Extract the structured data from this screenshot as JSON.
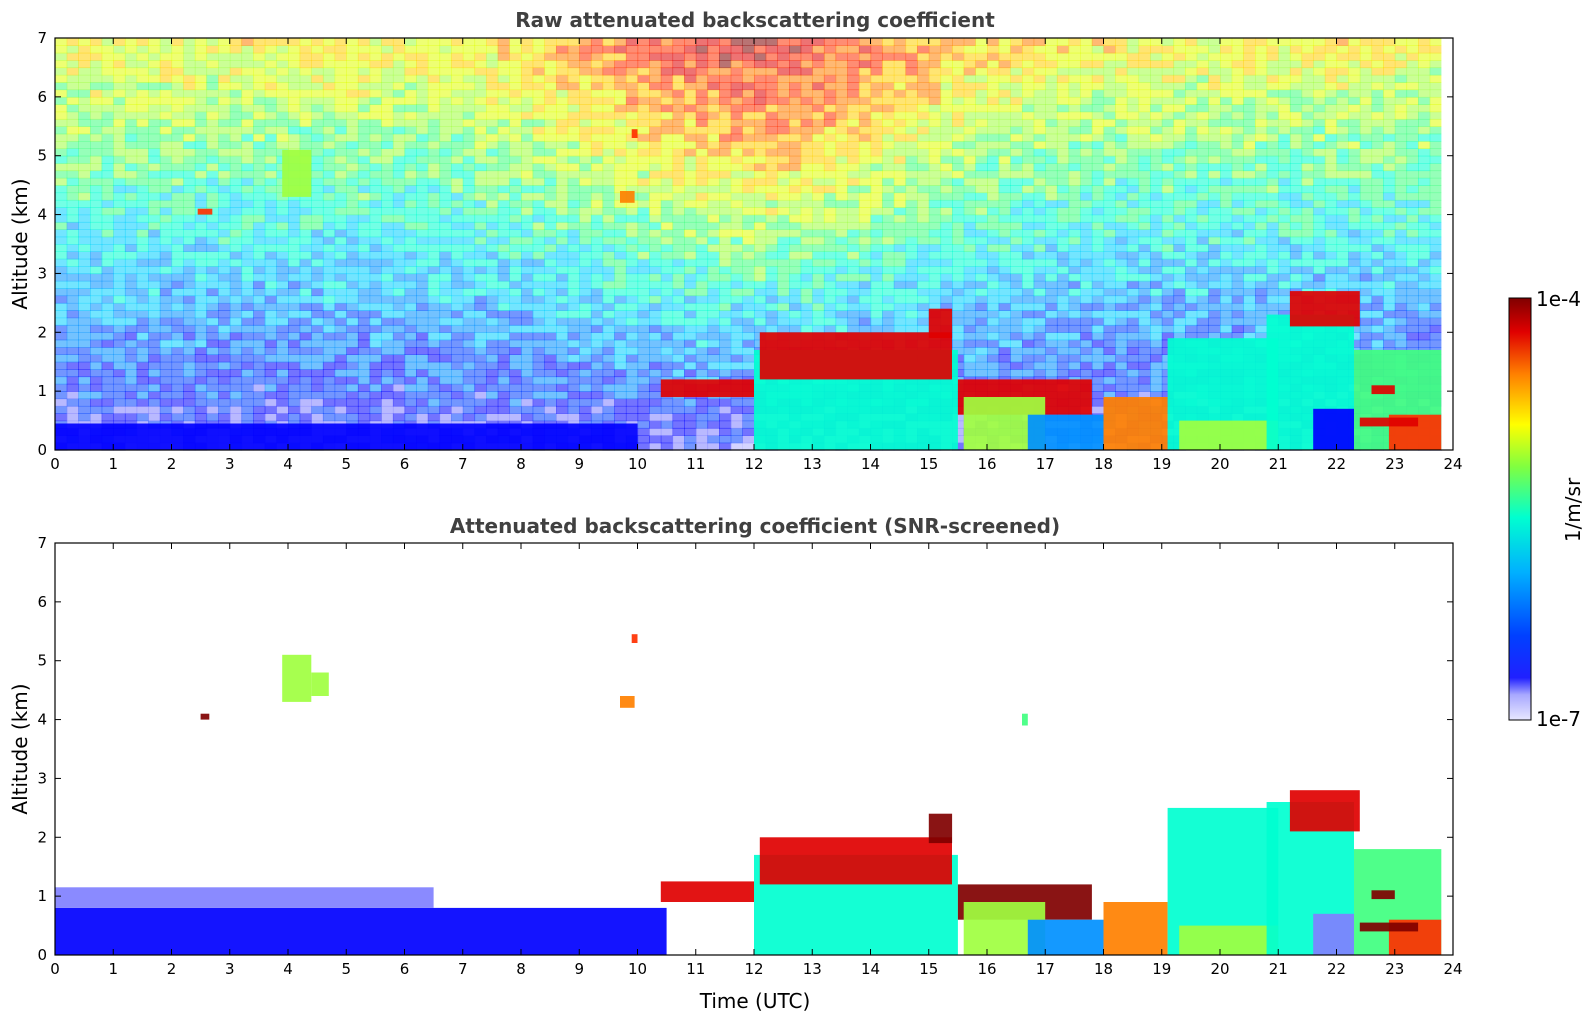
{
  "chart_data": [
    {
      "type": "heatmap",
      "title": "Raw attenuated backscattering coefficient",
      "xlabel": "",
      "ylabel": "Altitude (km)",
      "xlim": [
        0,
        24
      ],
      "ylim": [
        0,
        7
      ],
      "xticks": [
        0,
        1,
        2,
        3,
        4,
        5,
        6,
        7,
        8,
        9,
        10,
        11,
        12,
        13,
        14,
        15,
        16,
        17,
        18,
        19,
        20,
        21,
        22,
        23,
        24
      ],
      "yticks": [
        0,
        1,
        2,
        3,
        4,
        5,
        6,
        7
      ],
      "data_end_time": 23.8,
      "noise": true,
      "features": [
        {
          "t0": 0,
          "t1": 10,
          "z0": 0,
          "z1": 0.45,
          "v": 0.24
        },
        {
          "t0": 3.9,
          "t1": 4.4,
          "z0": 4.3,
          "z1": 5.1,
          "v": 0.6
        },
        {
          "t0": 2.45,
          "t1": 2.7,
          "z0": 4.0,
          "z1": 4.1,
          "v": 0.85
        },
        {
          "t0": 9.7,
          "t1": 9.95,
          "z0": 4.2,
          "z1": 4.4,
          "v": 0.75
        },
        {
          "t0": 9.9,
          "t1": 10.0,
          "z0": 5.3,
          "z1": 5.45,
          "v": 0.85
        },
        {
          "t0": 10.4,
          "t1": 12.0,
          "z0": 0.9,
          "z1": 1.2,
          "v": 0.88
        },
        {
          "t0": 12.0,
          "t1": 15.5,
          "z0": 0.0,
          "z1": 1.7,
          "v": 0.45
        },
        {
          "t0": 12.1,
          "t1": 15.4,
          "z0": 1.2,
          "z1": 2.0,
          "v": 0.92
        },
        {
          "t0": 15.0,
          "t1": 15.4,
          "z0": 1.9,
          "z1": 2.4,
          "v": 0.9
        },
        {
          "t0": 15.5,
          "t1": 17.8,
          "z0": 0.6,
          "z1": 1.2,
          "v": 0.9
        },
        {
          "t0": 15.6,
          "t1": 17.0,
          "z0": 0.0,
          "z1": 0.9,
          "v": 0.62
        },
        {
          "t0": 16.7,
          "t1": 18.0,
          "z0": 0.0,
          "z1": 0.6,
          "v": 0.32
        },
        {
          "t0": 18.0,
          "t1": 19.1,
          "z0": 0.0,
          "z1": 0.9,
          "v": 0.8
        },
        {
          "t0": 19.1,
          "t1": 21.0,
          "z0": 0.0,
          "z1": 1.9,
          "v": 0.45
        },
        {
          "t0": 19.3,
          "t1": 21.0,
          "z0": 0.0,
          "z1": 0.5,
          "v": 0.62
        },
        {
          "t0": 20.8,
          "t1": 22.3,
          "z0": 0.0,
          "z1": 2.3,
          "v": 0.48
        },
        {
          "t0": 21.6,
          "t1": 22.3,
          "z0": 0.0,
          "z1": 0.7,
          "v": 0.22
        },
        {
          "t0": 21.2,
          "t1": 22.4,
          "z0": 2.1,
          "z1": 2.7,
          "v": 0.93
        },
        {
          "t0": 22.3,
          "t1": 23.8,
          "z0": 0.0,
          "z1": 1.7,
          "v": 0.55
        },
        {
          "t0": 22.9,
          "t1": 23.8,
          "z0": 0.0,
          "z1": 0.6,
          "v": 0.82
        },
        {
          "t0": 22.4,
          "t1": 23.4,
          "z0": 0.4,
          "z1": 0.55,
          "v": 0.92
        },
        {
          "t0": 22.6,
          "t1": 23.0,
          "z0": 0.95,
          "z1": 1.1,
          "v": 0.93
        }
      ]
    },
    {
      "type": "heatmap",
      "title": "Attenuated backscattering coefficient (SNR-screened)",
      "xlabel": "Time (UTC)",
      "ylabel": "Altitude (km)",
      "xlim": [
        0,
        24
      ],
      "ylim": [
        0,
        7
      ],
      "xticks": [
        0,
        1,
        2,
        3,
        4,
        5,
        6,
        7,
        8,
        9,
        10,
        11,
        12,
        13,
        14,
        15,
        16,
        17,
        18,
        19,
        20,
        21,
        22,
        23,
        24
      ],
      "yticks": [
        0,
        1,
        2,
        3,
        4,
        5,
        6,
        7
      ],
      "data_end_time": 23.8,
      "noise": false,
      "features": [
        {
          "t0": 0,
          "t1": 10.5,
          "z0": 0,
          "z1": 0.8,
          "v": 0.22
        },
        {
          "t0": 0,
          "t1": 6.5,
          "z0": 0.8,
          "z1": 1.15,
          "v": 0.17
        },
        {
          "t0": 3.9,
          "t1": 4.4,
          "z0": 4.3,
          "z1": 5.1,
          "v": 0.6
        },
        {
          "t0": 4.4,
          "t1": 4.7,
          "z0": 4.4,
          "z1": 4.8,
          "v": 0.6
        },
        {
          "t0": 2.5,
          "t1": 2.65,
          "z0": 4.0,
          "z1": 4.1,
          "v": 0.99
        },
        {
          "t0": 9.7,
          "t1": 9.95,
          "z0": 4.2,
          "z1": 4.4,
          "v": 0.75
        },
        {
          "t0": 9.9,
          "t1": 10.0,
          "z0": 5.3,
          "z1": 5.45,
          "v": 0.85
        },
        {
          "t0": 16.6,
          "t1": 16.7,
          "z0": 3.9,
          "z1": 4.1,
          "v": 0.55
        },
        {
          "t0": 10.4,
          "t1": 12.0,
          "z0": 0.9,
          "z1": 1.25,
          "v": 0.9
        },
        {
          "t0": 12.0,
          "t1": 15.5,
          "z0": 0.0,
          "z1": 1.7,
          "v": 0.45
        },
        {
          "t0": 12.1,
          "t1": 15.4,
          "z0": 1.2,
          "z1": 2.0,
          "v": 0.93
        },
        {
          "t0": 15.0,
          "t1": 15.4,
          "z0": 1.9,
          "z1": 2.4,
          "v": 0.94
        },
        {
          "t0": 15.5,
          "t1": 17.8,
          "z0": 0.6,
          "z1": 1.2,
          "v": 0.95
        },
        {
          "t0": 15.6,
          "t1": 17.0,
          "z0": 0.0,
          "z1": 0.9,
          "v": 0.62
        },
        {
          "t0": 16.7,
          "t1": 18.0,
          "z0": 0.0,
          "z1": 0.6,
          "v": 0.32
        },
        {
          "t0": 18.0,
          "t1": 19.1,
          "z0": 0.0,
          "z1": 0.9,
          "v": 0.8
        },
        {
          "t0": 19.1,
          "t1": 21.0,
          "z0": 0.0,
          "z1": 2.5,
          "v": 0.45
        },
        {
          "t0": 19.3,
          "t1": 21.0,
          "z0": 0.0,
          "z1": 0.5,
          "v": 0.62
        },
        {
          "t0": 20.8,
          "t1": 22.3,
          "z0": 0.0,
          "z1": 2.6,
          "v": 0.48
        },
        {
          "t0": 21.6,
          "t1": 22.3,
          "z0": 0.0,
          "z1": 0.7,
          "v": 0.15
        },
        {
          "t0": 21.2,
          "t1": 22.4,
          "z0": 2.1,
          "z1": 2.8,
          "v": 0.93
        },
        {
          "t0": 22.3,
          "t1": 23.8,
          "z0": 0.0,
          "z1": 1.8,
          "v": 0.55
        },
        {
          "t0": 22.9,
          "t1": 23.8,
          "z0": 0.0,
          "z1": 0.6,
          "v": 0.82
        },
        {
          "t0": 22.4,
          "t1": 23.4,
          "z0": 0.4,
          "z1": 0.55,
          "v": 0.95
        },
        {
          "t0": 22.6,
          "t1": 23.0,
          "z0": 0.95,
          "z1": 1.1,
          "v": 0.95
        }
      ]
    }
  ],
  "colorbar": {
    "min_label": "1e-7",
    "max_label": "1e-4",
    "unit_label": "1/m/sr",
    "colors": [
      "#e8e8ff",
      "#b0b0ff",
      "#8080ff",
      "#0000ff",
      "#0040ff",
      "#0090ff",
      "#00d0ff",
      "#00ffd0",
      "#40ff80",
      "#a0ff40",
      "#e0ff00",
      "#ffd000",
      "#ff8000",
      "#ff3000",
      "#e00000",
      "#800000"
    ]
  }
}
